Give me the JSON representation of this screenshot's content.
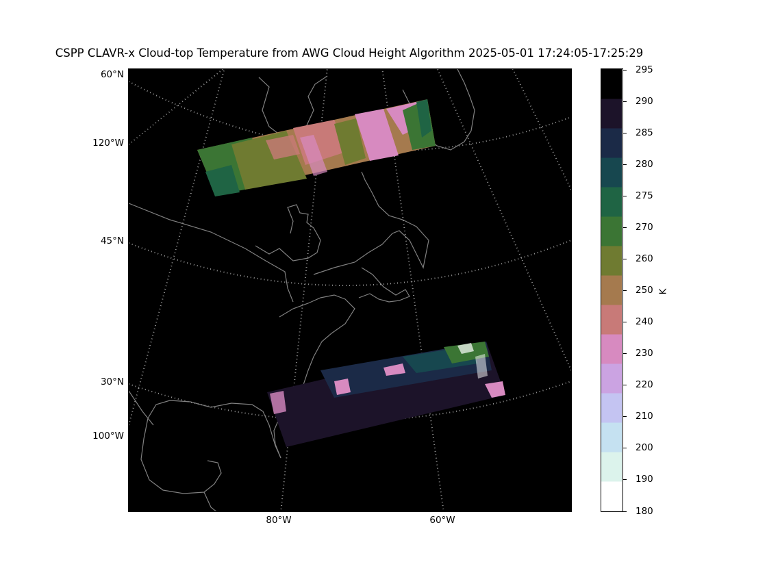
{
  "title": "CSPP CLAVR-x Cloud-top Temperature from AWG Cloud Height Algorithm 2025-05-01 17:24:05-17:25:29",
  "map": {
    "projection": "lambert-conformal",
    "background_color": "#000000",
    "coastline_color": "#808080",
    "graticule_style": "dotted",
    "graticule_color": "#9a9a9a",
    "lat_labels": [
      "60°N",
      "45°N",
      "30°N"
    ],
    "lon_labels_left": [
      "120°W",
      "100°W"
    ],
    "lon_labels_bottom": [
      "80°W",
      "60°W"
    ]
  },
  "colorbar": {
    "label": "K",
    "ticks": [
      "180",
      "190",
      "200",
      "210",
      "220",
      "230",
      "240",
      "250",
      "260",
      "270",
      "275",
      "280",
      "285",
      "290",
      "295"
    ],
    "colors_bottom_to_top": [
      "#ffffff",
      "#dcf3ec",
      "#c5e1f1",
      "#c4c4f2",
      "#cba3e2",
      "#d78ac0",
      "#c87a78",
      "#a57a4e",
      "#6f7b31",
      "#3b7534",
      "#1f6444",
      "#17474f",
      "#1b2a47",
      "#1c1329",
      "#000000"
    ]
  },
  "swaths": [
    {
      "name": "northern swath",
      "dominant_colors": [
        "#a57a4e",
        "#6f7b31",
        "#3b7534",
        "#d78ac0",
        "#c87a78"
      ]
    },
    {
      "name": "southern swath",
      "dominant_colors": [
        "#1b2a47",
        "#1c1329",
        "#17474f",
        "#d78ac0",
        "#ffffff"
      ]
    }
  ]
}
